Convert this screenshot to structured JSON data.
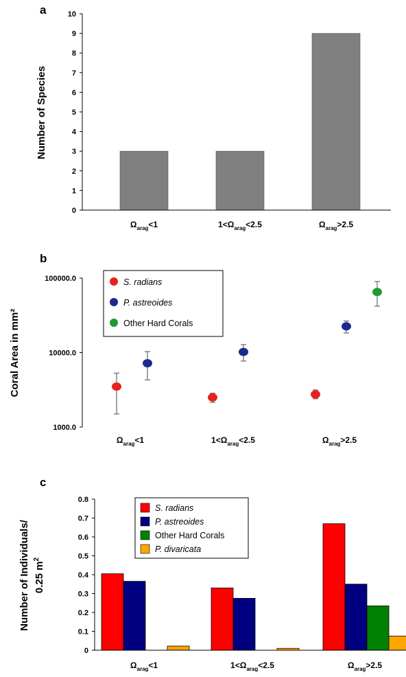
{
  "chart_data": [
    {
      "panel": "a",
      "type": "bar",
      "ylabel": "Number of Species",
      "ylim": [
        0,
        10
      ],
      "yticks": [
        "0",
        "1",
        "2",
        "3",
        "4",
        "5",
        "6",
        "7",
        "8",
        "9",
        "10"
      ],
      "categories": [
        {
          "pre": "Ω",
          "sub": "arag",
          "post": "<1"
        },
        {
          "pre": "1<Ω",
          "sub": "arag",
          "post": "<2.5"
        },
        {
          "pre": "Ω",
          "sub": "arag",
          "post": ">2.5"
        }
      ],
      "values": [
        3,
        3,
        9
      ],
      "bar_color": "#808080"
    },
    {
      "panel": "b",
      "type": "scatter",
      "ylabel": "Coral Area in mm²",
      "yscale": "log",
      "ylim": [
        1000,
        100000
      ],
      "yticks": [
        "1000.0",
        "10000.0",
        "100000.0"
      ],
      "categories": [
        {
          "pre": "Ω",
          "sub": "arag",
          "post": "<1"
        },
        {
          "pre": "1<Ω",
          "sub": "arag",
          "post": "<2.5"
        },
        {
          "pre": "Ω",
          "sub": "arag",
          "post": ">2.5"
        }
      ],
      "series": [
        {
          "name": "S. radians",
          "italic": true,
          "color": "#e8211f",
          "values": [
            3500,
            2500,
            2750
          ],
          "err_low": [
            1500,
            2150,
            2400
          ],
          "err_high": [
            5300,
            2850,
            3150
          ]
        },
        {
          "name": "P. astreoides",
          "italic": true,
          "color": "#1b2a8c",
          "values": [
            7200,
            10200,
            22500
          ],
          "err_low": [
            4300,
            7700,
            18300
          ],
          "err_high": [
            10300,
            12800,
            26500
          ]
        },
        {
          "name": "Other Hard Corals",
          "italic": false,
          "color": "#1f9a32",
          "values": [
            null,
            null,
            65000
          ],
          "err_low": [
            null,
            null,
            42000
          ],
          "err_high": [
            null,
            null,
            90000
          ]
        }
      ],
      "legend_position": "top-left"
    },
    {
      "panel": "c",
      "type": "bar",
      "ylabel_line1": "Number of Individuals/",
      "ylabel_line2": "0.25 m",
      "ylabel_sup": "2",
      "ylim": [
        0,
        0.8
      ],
      "yticks": [
        "0",
        "0.1",
        "0.2",
        "0.3",
        "0.4",
        "0.5",
        "0.6",
        "0.7",
        "0.8"
      ],
      "categories": [
        {
          "pre": "Ω",
          "sub": "arag",
          "post": "<1"
        },
        {
          "pre": "1<Ω",
          "sub": "arag",
          "post": "<2.5"
        },
        {
          "pre": "Ω",
          "sub": "arag",
          "post": ">2.5"
        }
      ],
      "series": [
        {
          "name": "S. radians",
          "italic": true,
          "color": "#ff0000",
          "values": [
            0.405,
            0.33,
            0.67
          ]
        },
        {
          "name": "P. astreoides",
          "italic": true,
          "color": "#000080",
          "values": [
            0.365,
            0.275,
            0.35
          ]
        },
        {
          "name": "Other Hard Corals",
          "italic": false,
          "color": "#008000",
          "values": [
            0,
            0,
            0.235
          ]
        },
        {
          "name": "P. divaricata",
          "italic": true,
          "color": "#ffa500",
          "values": [
            0.022,
            0.01,
            0.075
          ]
        }
      ],
      "legend_position": "top-center"
    }
  ]
}
